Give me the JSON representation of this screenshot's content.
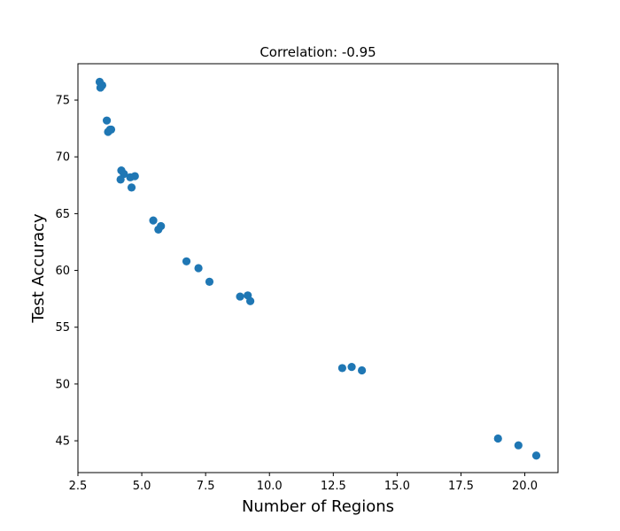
{
  "chart_data": {
    "type": "scatter",
    "title": "Correlation: -0.95",
    "xlabel": "Number of Regions",
    "ylabel": "Test Accuracy",
    "xlim": [
      2.5,
      21.3
    ],
    "ylim": [
      42.2,
      78.2
    ],
    "xticks": [
      2.5,
      5.0,
      7.5,
      10.0,
      12.5,
      15.0,
      17.5,
      20.0
    ],
    "xtick_labels": [
      "2.5",
      "5.0",
      "7.5",
      "10.0",
      "12.5",
      "15.0",
      "17.5",
      "20.0"
    ],
    "yticks": [
      45,
      50,
      55,
      60,
      65,
      70,
      75
    ],
    "ytick_labels": [
      "45",
      "50",
      "55",
      "60",
      "65",
      "70",
      "75"
    ],
    "grid": false,
    "marker_color": "#1f77b4",
    "x": [
      3.35,
      3.45,
      3.38,
      3.63,
      3.68,
      3.8,
      3.76,
      4.2,
      4.3,
      4.17,
      4.55,
      4.73,
      4.6,
      5.45,
      5.75,
      5.65,
      6.75,
      7.22,
      7.65,
      8.85,
      9.15,
      9.25,
      12.85,
      13.22,
      13.62,
      18.95,
      19.75,
      20.45
    ],
    "y": [
      76.6,
      76.3,
      76.1,
      73.2,
      72.2,
      72.4,
      72.4,
      68.8,
      68.5,
      68.0,
      68.2,
      68.3,
      67.3,
      64.4,
      63.9,
      63.6,
      60.8,
      60.2,
      59.0,
      57.7,
      57.8,
      57.3,
      51.4,
      51.5,
      51.2,
      45.2,
      44.6,
      43.7
    ]
  }
}
